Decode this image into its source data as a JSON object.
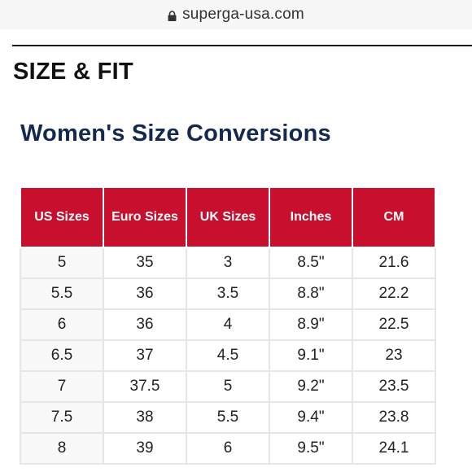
{
  "browser": {
    "url": "superga-usa.com"
  },
  "page": {
    "section_heading": "SIZE & FIT",
    "table_title": "Women's Size Conversions"
  },
  "size_table": {
    "headers": [
      "US Sizes",
      "Euro Sizes",
      "UK Sizes",
      "Inches",
      "CM"
    ],
    "rows": [
      [
        "5",
        "35",
        "3",
        "8.5\"",
        "21.6"
      ],
      [
        "5.5",
        "36",
        "3.5",
        "8.8\"",
        "22.2"
      ],
      [
        "6",
        "36",
        "4",
        "8.9\"",
        "22.5"
      ],
      [
        "6.5",
        "37",
        "4.5",
        "9.1\"",
        "23"
      ],
      [
        "7",
        "37.5",
        "5",
        "9.2\"",
        "23.5"
      ],
      [
        "7.5",
        "38",
        "5.5",
        "9.4\"",
        "23.8"
      ],
      [
        "8",
        "39",
        "6",
        "9.5\"",
        "24.1"
      ]
    ]
  },
  "colors": {
    "header_bg": "#c8102e",
    "title_navy": "#14294f"
  },
  "icons": {
    "lock": "lock-icon"
  }
}
